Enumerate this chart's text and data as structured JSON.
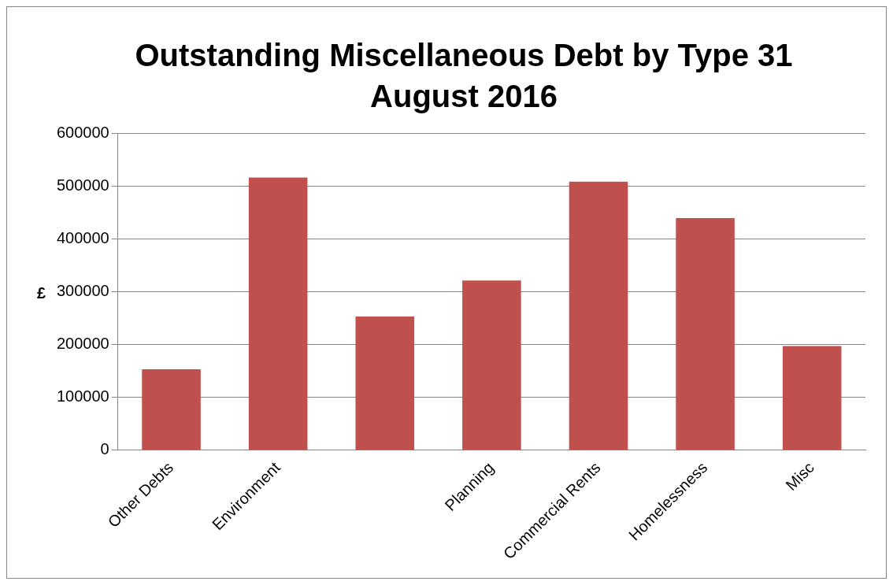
{
  "chart_data": {
    "type": "bar",
    "title": "Outstanding Miscellaneous Debt by Type 31 August 2016",
    "ylabel": "£",
    "categories": [
      "Other Debts",
      "Environment",
      null,
      "Planning",
      "Commercial Rents",
      "Homelessness",
      "Misc"
    ],
    "values": [
      153000,
      516000,
      253000,
      321000,
      508000,
      439000,
      197000
    ],
    "color": "#c0504d",
    "ylim": [
      0,
      600000
    ],
    "yticks": [
      0,
      100000,
      200000,
      300000,
      400000,
      500000,
      600000
    ],
    "grid": "y",
    "legend": false
  }
}
